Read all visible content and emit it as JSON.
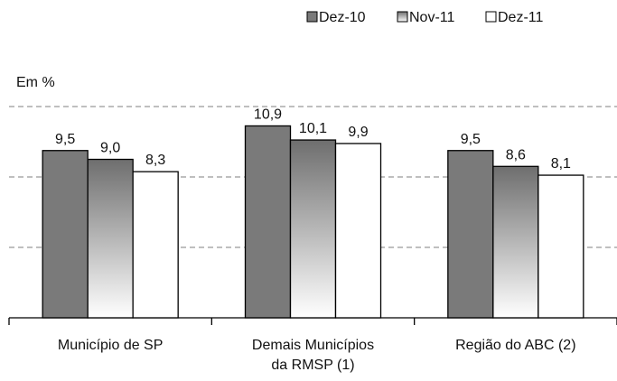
{
  "chart_data": {
    "type": "bar",
    "y_label": "Em %",
    "categories": [
      "Município de SP",
      "Demais Municípios\nda RMSP (1)",
      "Região do ABC (2)"
    ],
    "series": [
      {
        "name": "Dez-10",
        "color": "#7a7a7a",
        "values": [
          9.5,
          10.9,
          9.5
        ],
        "value_labels": [
          "9,5",
          "10,9",
          "9,5"
        ]
      },
      {
        "name": "Nov-11",
        "color": "gradient",
        "values": [
          9.0,
          10.1,
          8.6
        ],
        "value_labels": [
          "9,0",
          "10,1",
          "8,6"
        ]
      },
      {
        "name": "Dez-11",
        "color": "#ffffff",
        "values": [
          8.3,
          9.9,
          8.1
        ],
        "value_labels": [
          "8,3",
          "9,9",
          "8,1"
        ]
      }
    ],
    "ylim": [
      0,
      13
    ],
    "yticks": [
      4,
      8,
      12
    ],
    "grid": true
  }
}
